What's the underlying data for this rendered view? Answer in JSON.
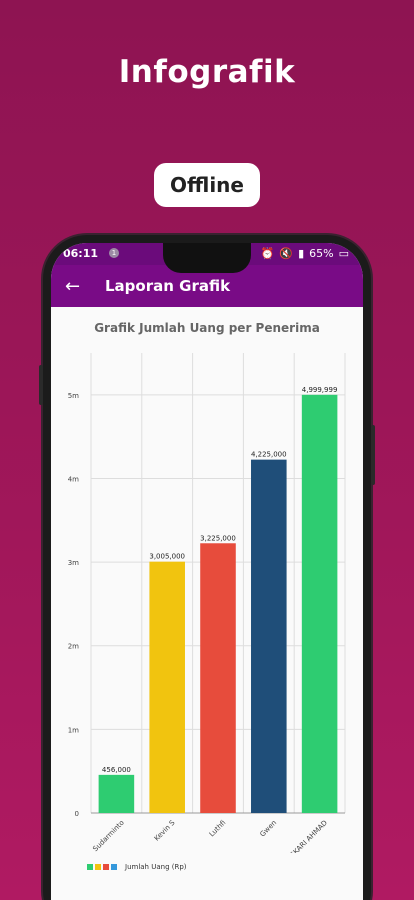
{
  "promo": {
    "headline": "Infografik",
    "badge": "Offline"
  },
  "status_bar": {
    "time": "06:11",
    "notif_count": "1",
    "battery": "65%"
  },
  "app_bar": {
    "title": "Laporan Grafik",
    "back_icon": "arrow-left-icon"
  },
  "chart_data": {
    "type": "bar",
    "title": "Grafik Jumlah Uang per Penerima",
    "categories": [
      "Sudarminto",
      "Kevin S",
      "Luthfi",
      "Gwen",
      "ASKARI AHMAD"
    ],
    "values": [
      456000,
      3005000,
      3225000,
      4225000,
      4999999
    ],
    "value_labels": [
      "456,000",
      "3,005,000",
      "3,225,000",
      "4,225,000",
      "4,999,999"
    ],
    "colors": [
      "#2ecc71",
      "#f1c40f",
      "#e74c3c",
      "#1f4e79",
      "#2ecc71"
    ],
    "yticks": [
      0,
      1000000,
      2000000,
      3000000,
      4000000,
      5000000
    ],
    "ytick_labels": [
      "0",
      "1m",
      "2m",
      "3m",
      "4m",
      "5m"
    ],
    "ylim": [
      0,
      5500000
    ],
    "legend": {
      "label": "Jumlah Uang (Rp)",
      "colors": [
        "#2ecc71",
        "#f1c40f",
        "#e74c3c",
        "#3498db"
      ],
      "position": "bottom-left"
    },
    "grid": true
  }
}
